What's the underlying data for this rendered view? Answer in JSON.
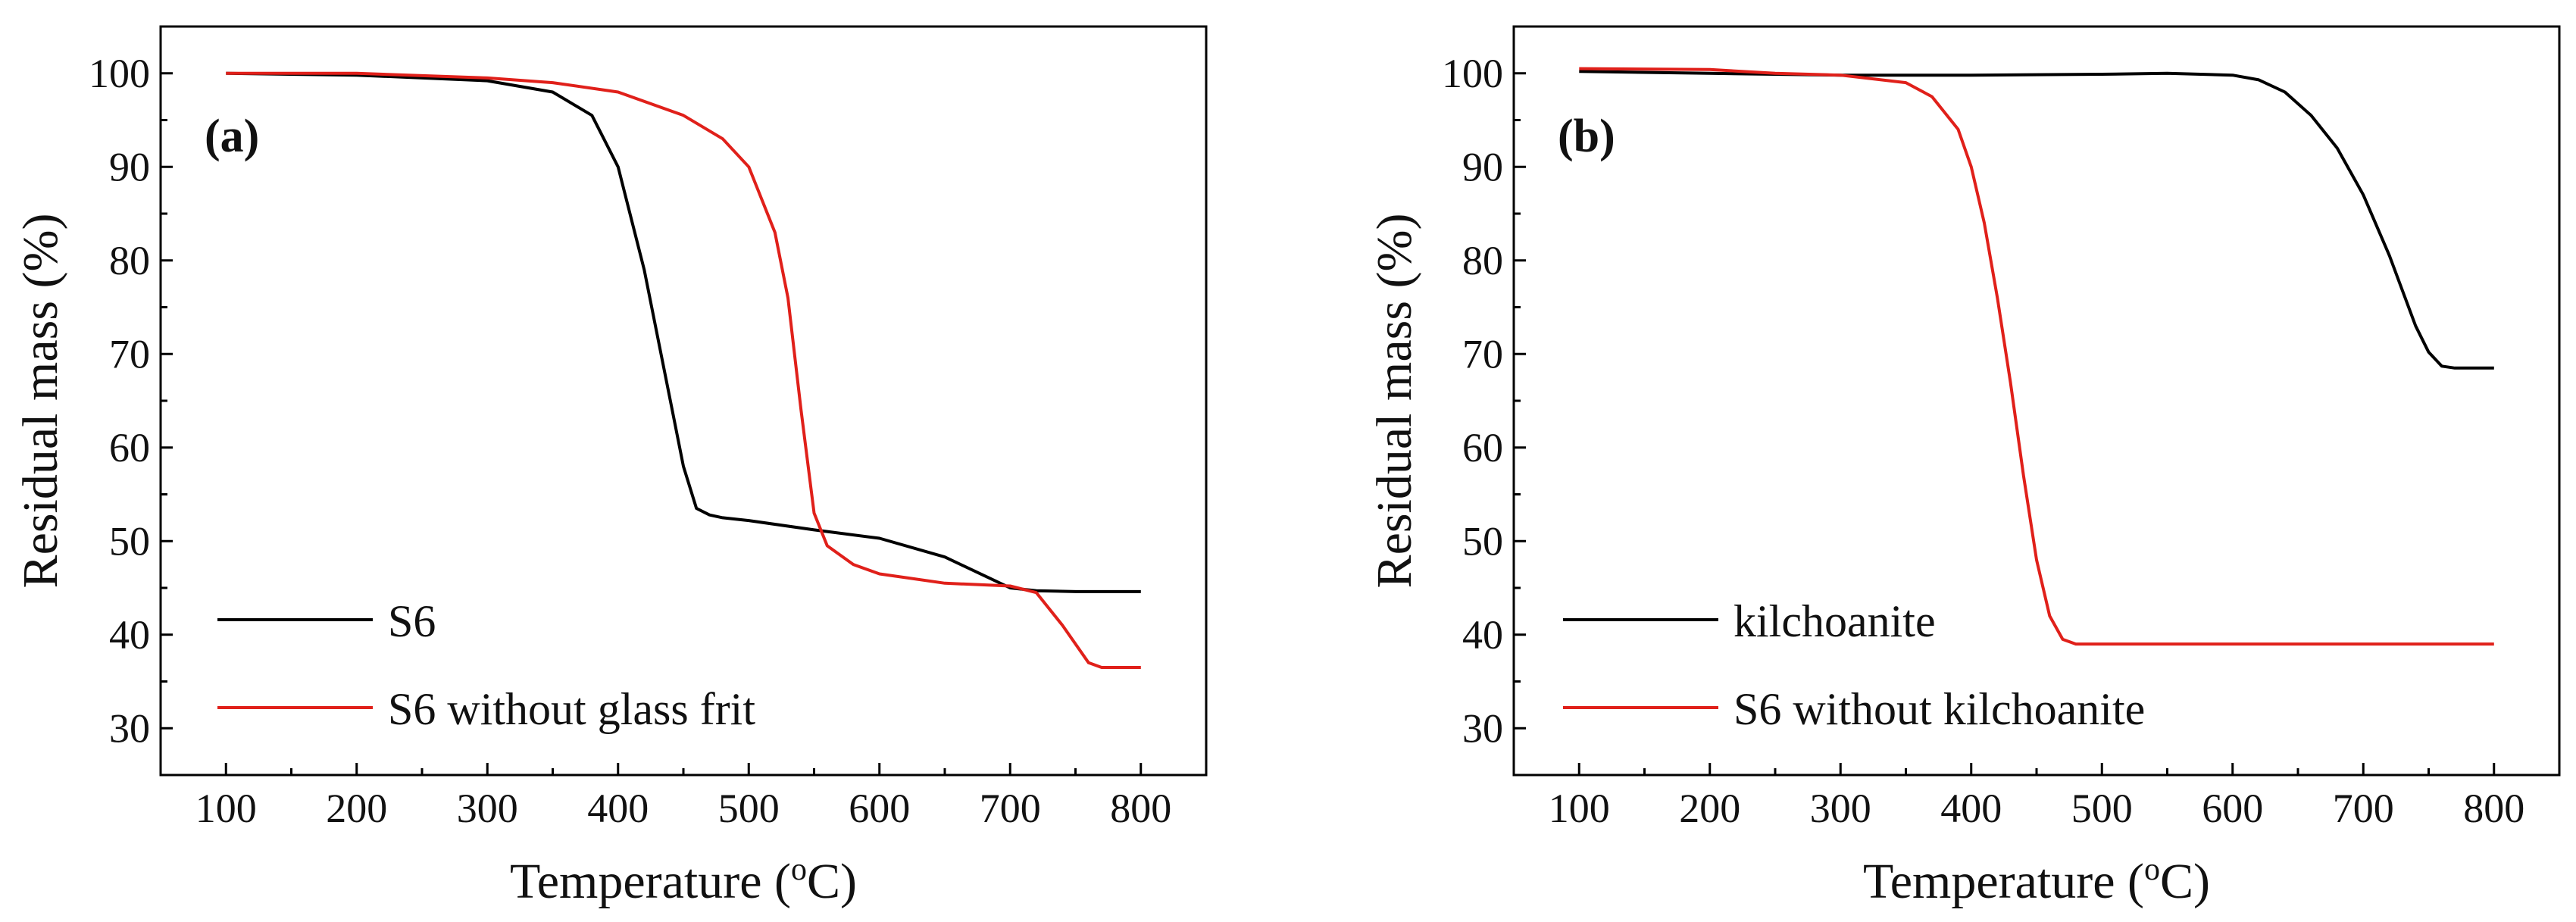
{
  "chart_data": [
    {
      "type": "line",
      "panel_label": "(a)",
      "xlabel": "Temperature (",
      "xlabel_sup": "o",
      "xlabel_unit": "C)",
      "ylabel": "Residual mass (%)",
      "xlim": [
        50,
        850
      ],
      "ylim": [
        25,
        105
      ],
      "xticks": [
        "100",
        "200",
        "300",
        "400",
        "500",
        "600",
        "700",
        "800"
      ],
      "yticks": [
        "30",
        "40",
        "50",
        "60",
        "70",
        "80",
        "90",
        "100"
      ],
      "legend_position": "bottom-left",
      "series": [
        {
          "name": "S6",
          "color": "#000000",
          "x": [
            100,
            200,
            300,
            350,
            380,
            400,
            420,
            440,
            450,
            460,
            470,
            480,
            500,
            550,
            600,
            650,
            700,
            720,
            750,
            800
          ],
          "y": [
            100,
            99.8,
            99.2,
            98.0,
            95.5,
            90,
            79,
            65,
            58,
            53.5,
            52.8,
            52.5,
            52.2,
            51.2,
            50.3,
            48.3,
            45.0,
            44.7,
            44.6,
            44.6
          ]
        },
        {
          "name": "S6 without glass frit",
          "color": "#e0201a",
          "x": [
            100,
            200,
            300,
            350,
            400,
            450,
            480,
            500,
            520,
            530,
            540,
            550,
            560,
            580,
            600,
            650,
            700,
            720,
            740,
            760,
            770,
            800
          ],
          "y": [
            100,
            100,
            99.5,
            99,
            98,
            95.5,
            93,
            90,
            83,
            76,
            64,
            53,
            49.5,
            47.5,
            46.5,
            45.5,
            45.2,
            44.5,
            41,
            37,
            36.5,
            36.5
          ]
        }
      ]
    },
    {
      "type": "line",
      "panel_label": "(b)",
      "xlabel": "Temperature (",
      "xlabel_sup": "o",
      "xlabel_unit": "C)",
      "ylabel": "Residual mass (%)",
      "xlim": [
        50,
        850
      ],
      "ylim": [
        25,
        105
      ],
      "xticks": [
        "100",
        "200",
        "300",
        "400",
        "500",
        "600",
        "700",
        "800"
      ],
      "yticks": [
        "30",
        "40",
        "50",
        "60",
        "70",
        "80",
        "90",
        "100"
      ],
      "legend_position": "bottom-left",
      "series": [
        {
          "name": "kilchoanite",
          "color": "#000000",
          "x": [
            100,
            200,
            300,
            400,
            500,
            550,
            600,
            620,
            640,
            660,
            680,
            700,
            720,
            740,
            750,
            760,
            770,
            800
          ],
          "y": [
            100.2,
            100,
            99.8,
            99.8,
            99.9,
            100,
            99.8,
            99.3,
            98,
            95.5,
            92,
            87,
            80.5,
            73,
            70.2,
            68.7,
            68.5,
            68.5
          ]
        },
        {
          "name": "S6 without kilchoanite",
          "color": "#e0201a",
          "x": [
            100,
            200,
            250,
            300,
            350,
            370,
            390,
            400,
            410,
            420,
            430,
            440,
            450,
            460,
            470,
            480,
            500,
            600,
            700,
            800
          ],
          "y": [
            100.5,
            100.4,
            100,
            99.8,
            99,
            97.5,
            94,
            90,
            84,
            76,
            67,
            57,
            48,
            42,
            39.5,
            39,
            39,
            39,
            39,
            39
          ]
        }
      ]
    }
  ]
}
